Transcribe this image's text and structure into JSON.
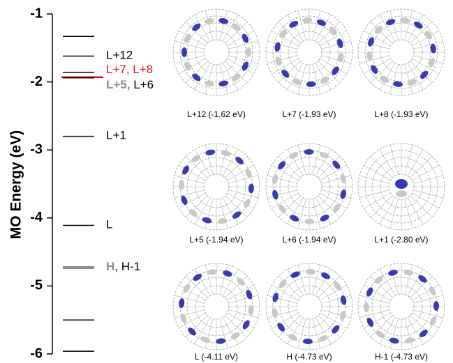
{
  "chart_data": {
    "type": "levels",
    "y_label": "MO Energy (eV)",
    "ylim": [
      -6,
      -1
    ],
    "yticks": [
      -1,
      -2,
      -3,
      -4,
      -5,
      -6
    ],
    "levels": [
      {
        "value": -1.33,
        "color": "#000000"
      },
      {
        "value": -1.62,
        "color": "#000000",
        "label": [
          {
            "text": "L+12",
            "color": "#000000"
          }
        ]
      },
      {
        "value": -1.86,
        "color": "#000000"
      },
      {
        "value": -1.93,
        "color": "#e8141c",
        "label": [
          {
            "text": "L+7, L+8",
            "color": "#e8141c"
          }
        ]
      },
      {
        "value": -1.94,
        "color": "#000000",
        "label": [
          {
            "text": "L+5,",
            "color": "#8c8c8c",
            "bold": true
          },
          {
            "text": " L+6",
            "color": "#000000"
          }
        ]
      },
      {
        "value": -2.8,
        "color": "#000000",
        "label": [
          {
            "text": "L+1",
            "color": "#000000"
          }
        ]
      },
      {
        "value": -4.11,
        "color": "#000000",
        "label": [
          {
            "text": "L",
            "color": "#000000"
          }
        ]
      },
      {
        "value": -4.73,
        "color": "#8c8c8c",
        "thick": true,
        "label": [
          {
            "text": "H",
            "color": "#8c8c8c",
            "bold": true
          },
          {
            "text": ", H-1",
            "color": "#000000"
          }
        ]
      },
      {
        "value": -5.5,
        "color": "#000000"
      },
      {
        "value": -5.96,
        "color": "#000000"
      }
    ],
    "panels": [
      "L+12 (-1.62 eV)",
      "L+7 (-1.93 eV)",
      "L+8 (-1.93 eV)",
      "L+5 (-1.94 eV)",
      "L+6 (-1.94 eV)",
      "L+1 (-2.80 eV)",
      "L (-4.11 eV)",
      "H (-4.73 eV)",
      "H-1 (-4.73 eV)"
    ]
  }
}
